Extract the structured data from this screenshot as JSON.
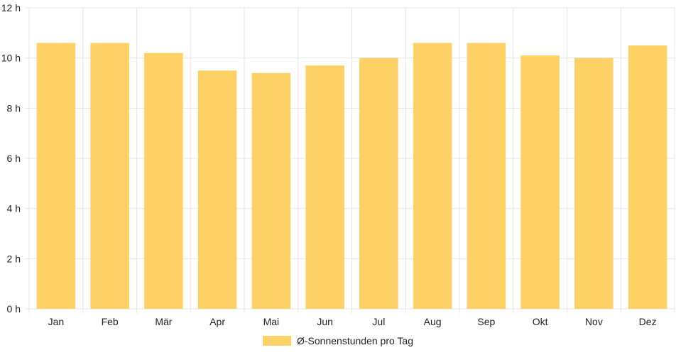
{
  "chart_data": {
    "type": "bar",
    "categories": [
      "Jan",
      "Feb",
      "Mär",
      "Apr",
      "Mai",
      "Jun",
      "Jul",
      "Aug",
      "Sep",
      "Okt",
      "Nov",
      "Dez"
    ],
    "series": [
      {
        "name": "Ø-Sonnenstunden pro Tag",
        "values": [
          10.6,
          10.6,
          10.2,
          9.5,
          9.4,
          9.7,
          10.0,
          10.6,
          10.6,
          10.1,
          10.0,
          10.5
        ],
        "color": "#fdd166"
      }
    ],
    "ylim": [
      0,
      12
    ],
    "y_ticks": [
      "0 h",
      "2 h",
      "4 h",
      "6 h",
      "8 h",
      "10 h",
      "12 h"
    ],
    "y_tick_values": [
      0,
      2,
      4,
      6,
      8,
      10,
      12
    ],
    "grid": true,
    "grid_color": "#e6e6e6",
    "legend_position": "bottom"
  }
}
